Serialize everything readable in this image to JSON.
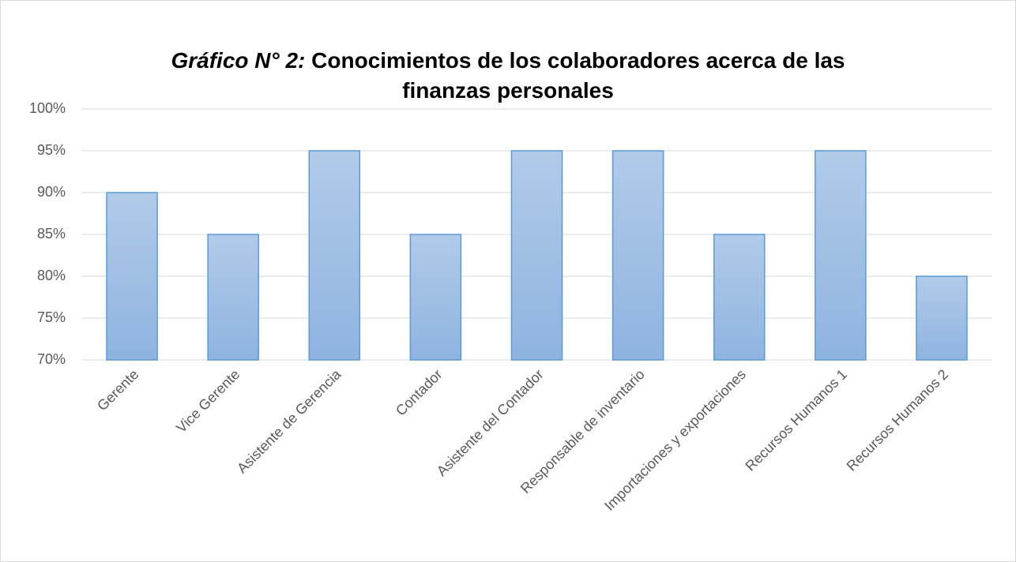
{
  "chart_data": {
    "type": "bar",
    "title_label": "Gráfico N° 2:",
    "title": "Conocimientos de los colaboradores acerca de las finanzas personales",
    "categories": [
      "Gerente",
      "Vice Gerente",
      "Asistente de Gerencia",
      "Contador",
      "Asistente del Contador",
      "Responsable de inventario",
      "Importaciones y exportaciones",
      "Recursos Humanos 1",
      "Recursos Humanos 2"
    ],
    "values": [
      90,
      85,
      95,
      85,
      95,
      95,
      85,
      95,
      80
    ],
    "color": "#5b9bd5",
    "ylim": [
      70,
      100
    ],
    "yticks": [
      {
        "value": 70,
        "label": "70%"
      },
      {
        "value": 75,
        "label": "75%"
      },
      {
        "value": 80,
        "label": "80%"
      },
      {
        "value": 85,
        "label": "85%"
      },
      {
        "value": 90,
        "label": "90%"
      },
      {
        "value": 95,
        "label": "95%"
      },
      {
        "value": 100,
        "label": "100%"
      }
    ],
    "grid": true
  }
}
